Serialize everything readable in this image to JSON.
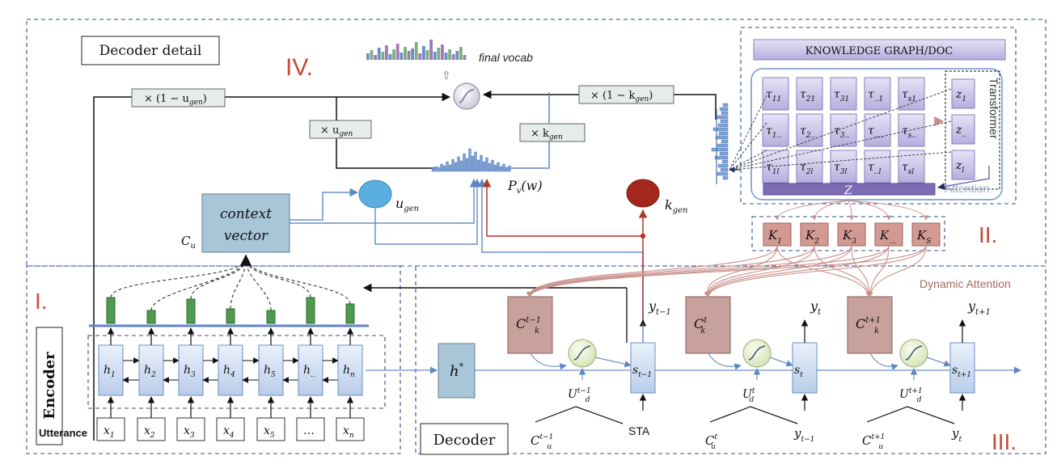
{
  "labels": {
    "decoder_detail": "Decoder detail",
    "encoder": "Encoder",
    "decoder": "Decoder",
    "utterance": "Utterance",
    "final_vocab": "final vocab",
    "knowledge_graph": "KNOWLEDGE GRAPH/DOC",
    "transformer": "Transformer",
    "attention": "Attention",
    "dynamic_attention": "Dynamic Attention",
    "context_vector_1": "context",
    "context_vector_2": "vector",
    "cu": "C",
    "cu_sub": "u",
    "u_gen": "u",
    "u_gen_sub": "gen",
    "k_gen": "k",
    "k_gen_sub": "gen",
    "pv": "P",
    "pv_sub": "v",
    "pv_arg": "(w)",
    "z_label": "Z",
    "hstar": "h",
    "hstar_sup": "*",
    "sta": "STA"
  },
  "sections": {
    "i": "I.",
    "ii": "II.",
    "iii": "III.",
    "iv": "IV."
  },
  "multipliers": {
    "one_minus_u": "× (1 − u",
    "u_sub": "gen",
    "u": "× u",
    "one_minus_k": "× (1 − k",
    "k": "× k",
    "close": ")"
  },
  "encoder": {
    "hidden": [
      {
        "base": "h",
        "sub": "1"
      },
      {
        "base": "h",
        "sub": "2"
      },
      {
        "base": "h",
        "sub": "3"
      },
      {
        "base": "h",
        "sub": "4"
      },
      {
        "base": "h",
        "sub": "5"
      },
      {
        "base": "h",
        "sub": ".."
      },
      {
        "base": "h",
        "sub": "n"
      }
    ],
    "inputs": [
      {
        "base": "x",
        "sub": "1"
      },
      {
        "base": "x",
        "sub": "2"
      },
      {
        "base": "x",
        "sub": "3"
      },
      {
        "base": "x",
        "sub": "4"
      },
      {
        "base": "x",
        "sub": "5"
      },
      {
        "base": "…",
        "sub": ""
      },
      {
        "base": "x",
        "sub": "n"
      }
    ]
  },
  "knowledge": {
    "tau": [
      [
        {
          "s": "11"
        },
        {
          "s": "21"
        },
        {
          "s": "31"
        },
        {
          "s": "..1"
        },
        {
          "s": "s1"
        }
      ],
      [
        {
          "s": "1.."
        },
        {
          "s": "2.."
        },
        {
          "s": "3.."
        },
        {
          "s": "...."
        },
        {
          "s": "s.."
        }
      ],
      [
        {
          "s": "1l"
        },
        {
          "s": "2l"
        },
        {
          "s": "3l"
        },
        {
          "s": "..l"
        },
        {
          "s": "sl"
        }
      ]
    ],
    "z": [
      {
        "s": "1"
      },
      {
        "s": ".."
      },
      {
        "s": "l"
      }
    ],
    "K": [
      {
        "s": "1"
      },
      {
        "s": "2"
      },
      {
        "s": "3"
      },
      {
        "s": "..."
      },
      {
        "s": "S"
      }
    ]
  },
  "decoder": {
    "ck": [
      {
        "sup": "t−1"
      },
      {
        "sup": "t"
      },
      {
        "sup": "t+1"
      }
    ],
    "states": [
      {
        "sub": "t−1"
      },
      {
        "sub": "t"
      },
      {
        "sub": "t+1"
      }
    ],
    "outputs": [
      {
        "sub": "t−1"
      },
      {
        "sub": "t"
      },
      {
        "sub": "t+1"
      }
    ],
    "ud": [
      {
        "sup": "t−1"
      },
      {
        "sup": "t"
      },
      {
        "sup": "t+1"
      }
    ],
    "cu_inputs": [
      {
        "sup": "t−1"
      },
      {
        "sup": "t"
      },
      {
        "sup": "t+1"
      }
    ],
    "prev_inputs": [
      {
        "text": "STA"
      },
      {
        "text": "y",
        "sub": "t−1"
      },
      {
        "text": "y",
        "sub": "t"
      }
    ]
  },
  "colors": {
    "dash": "#2f4f8f",
    "blue_box": "#c9d9f0",
    "blue_stroke": "#6d8fc8",
    "context_fill": "#a9c6d8",
    "ck_fill": "#c9a19c",
    "k_fill": "#d39a93",
    "green": "#4e9a4e",
    "ugen": "#5aaee0",
    "kgen": "#a4261c",
    "red_line": "#b0382c",
    "line_blue": "#6a90c8",
    "purple": "#7d6cb4",
    "purple_light": "#c9c0e6",
    "roman": "#c94a3a"
  }
}
